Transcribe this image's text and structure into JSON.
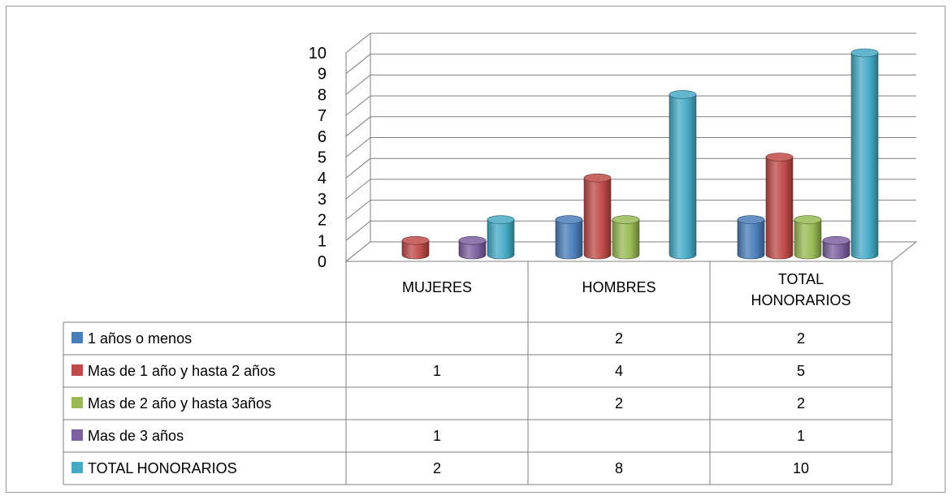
{
  "chart_data": {
    "type": "bar",
    "categories": [
      "MUJERES",
      "HOMBRES",
      "TOTAL\nHONORARIOS"
    ],
    "series": [
      {
        "name": "1 años o menos",
        "color": "#4a7ebb",
        "values": [
          null,
          2,
          2
        ]
      },
      {
        "name": "Mas de 1 año y hasta 2 años",
        "color": "#be4b48",
        "values": [
          1,
          4,
          5
        ]
      },
      {
        "name": "Mas de 2 año y hasta 3años",
        "color": "#98b954",
        "values": [
          null,
          2,
          2
        ]
      },
      {
        "name": "Mas de 3 años",
        "color": "#7d60a0",
        "values": [
          1,
          null,
          1
        ]
      },
      {
        "name": "TOTAL HONORARIOS",
        "color": "#46aac5",
        "values": [
          2,
          8,
          10
        ]
      }
    ],
    "yticks": [
      0,
      1,
      2,
      3,
      4,
      5,
      6,
      7,
      8,
      9,
      10
    ],
    "ylim": [
      0,
      10
    ],
    "grid": true,
    "legend": "data table",
    "style": "3d cylinder"
  }
}
